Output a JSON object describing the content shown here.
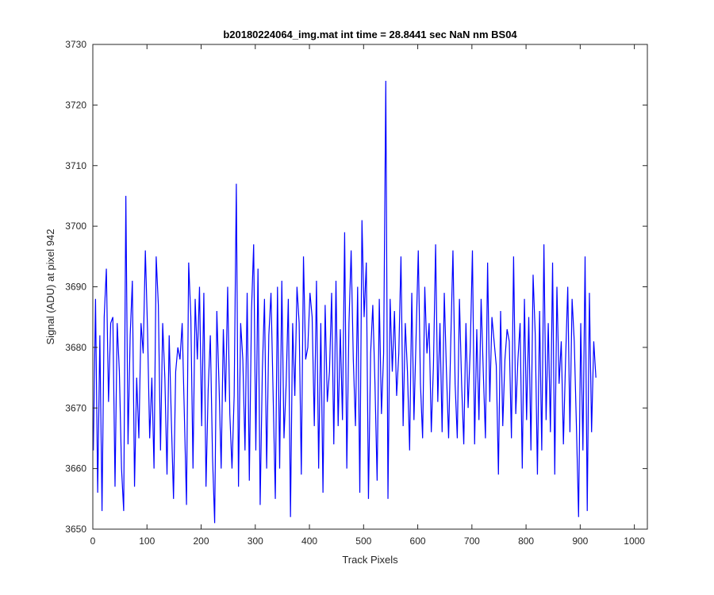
{
  "chart_data": {
    "type": "line",
    "title": "b20180224064_img.mat int time = 28.8441 sec  NaN nm BS04",
    "xlabel": "Track Pixels",
    "ylabel": "Signal (ADU) at pixel 942",
    "xlim": [
      0,
      1024
    ],
    "ylim": [
      3650,
      3730
    ],
    "xticks": [
      0,
      100,
      200,
      300,
      400,
      500,
      600,
      700,
      800,
      900,
      1000
    ],
    "yticks": [
      3650,
      3660,
      3670,
      3680,
      3690,
      3700,
      3710,
      3720,
      3730
    ],
    "grid": false,
    "legend": "none",
    "line_color": "#0000ff",
    "series": [
      {
        "x_start": 1,
        "x_step": 4,
        "values": [
          3663,
          3688,
          3656,
          3682,
          3653,
          3685,
          3693,
          3671,
          3684,
          3685,
          3657,
          3684,
          3676,
          3660,
          3653,
          3705,
          3664,
          3682,
          3691,
          3657,
          3675,
          3665,
          3684,
          3679,
          3696,
          3683,
          3665,
          3675,
          3660,
          3695,
          3687,
          3663,
          3684,
          3675,
          3659,
          3682,
          3668,
          3655,
          3676,
          3680,
          3678,
          3684,
          3669,
          3654,
          3694,
          3685,
          3660,
          3688,
          3678,
          3690,
          3667,
          3689,
          3657,
          3673,
          3682,
          3662,
          3651,
          3686,
          3674,
          3660,
          3683,
          3671,
          3690,
          3669,
          3660,
          3672,
          3707,
          3657,
          3684,
          3678,
          3663,
          3689,
          3658,
          3686,
          3697,
          3663,
          3693,
          3654,
          3676,
          3688,
          3660,
          3682,
          3689,
          3672,
          3655,
          3690,
          3660,
          3691,
          3665,
          3674,
          3688,
          3652,
          3684,
          3672,
          3690,
          3684,
          3659,
          3695,
          3678,
          3680,
          3689,
          3685,
          3667,
          3691,
          3660,
          3684,
          3656,
          3687,
          3671,
          3676,
          3689,
          3664,
          3691,
          3667,
          3683,
          3668,
          3699,
          3660,
          3684,
          3696,
          3678,
          3667,
          3690,
          3656,
          3701,
          3685,
          3694,
          3655,
          3679,
          3687,
          3674,
          3658,
          3688,
          3669,
          3679,
          3724,
          3655,
          3688,
          3676,
          3686,
          3672,
          3679,
          3695,
          3667,
          3684,
          3676,
          3663,
          3689,
          3668,
          3682,
          3696,
          3674,
          3665,
          3690,
          3679,
          3684,
          3666,
          3677,
          3697,
          3671,
          3684,
          3666,
          3689,
          3676,
          3665,
          3681,
          3696,
          3674,
          3665,
          3688,
          3674,
          3664,
          3684,
          3670,
          3680,
          3696,
          3664,
          3683,
          3668,
          3688,
          3676,
          3665,
          3694,
          3671,
          3685,
          3681,
          3677,
          3659,
          3686,
          3667,
          3678,
          3683,
          3681,
          3665,
          3695,
          3669,
          3678,
          3684,
          3660,
          3688,
          3668,
          3685,
          3663,
          3692,
          3682,
          3659,
          3686,
          3663,
          3697,
          3668,
          3684,
          3666,
          3694,
          3659,
          3690,
          3674,
          3681,
          3664,
          3678,
          3690,
          3666,
          3688,
          3681,
          3667,
          3652,
          3684,
          3663,
          3695,
          3653,
          3689,
          3666,
          3681,
          3675
        ]
      }
    ]
  }
}
